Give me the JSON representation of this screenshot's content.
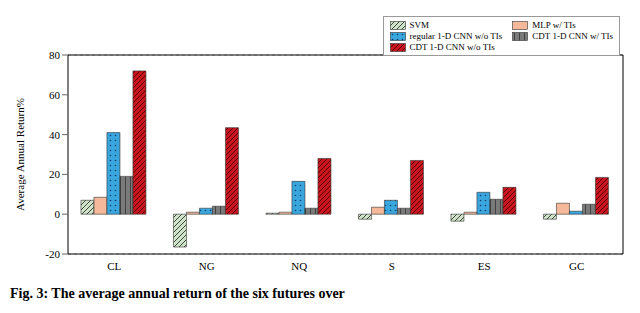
{
  "chart_data": {
    "type": "bar",
    "title": "Fig. 3: The average annual return of the six futures over",
    "y_label": "Average Annual Return%",
    "categories": [
      "CL",
      "NG",
      "NQ",
      "S",
      "ES",
      "GC"
    ],
    "series": [
      {
        "name": "SVM",
        "color": "#cfe3c8",
        "values": [
          7,
          -16.5,
          0.5,
          -2.5,
          -3.5,
          -2.5
        ]
      },
      {
        "name": "MLP w/ TIs",
        "color": "#f5b89a",
        "values": [
          8.5,
          1,
          1,
          3.5,
          1,
          5.5
        ]
      },
      {
        "name": "regular 1-D CNN w/o TIs",
        "color": "#3aa6de",
        "values": [
          41,
          3,
          16.5,
          7,
          11,
          1.5
        ]
      },
      {
        "name": "CDT 1-D CNN w/ TIs",
        "color": "#7a7a7a",
        "values": [
          19,
          4,
          3,
          3,
          7.5,
          5
        ]
      },
      {
        "name": "CDT 1-D CNN w/o TIs",
        "color": "#c8161d",
        "values": [
          72,
          43.5,
          28,
          27,
          13.5,
          18.5
        ]
      }
    ],
    "ylim": [
      -20,
      80
    ],
    "yticks": [
      -20,
      0,
      20,
      40,
      60,
      80
    ],
    "grid": true,
    "legend": "top-right"
  }
}
